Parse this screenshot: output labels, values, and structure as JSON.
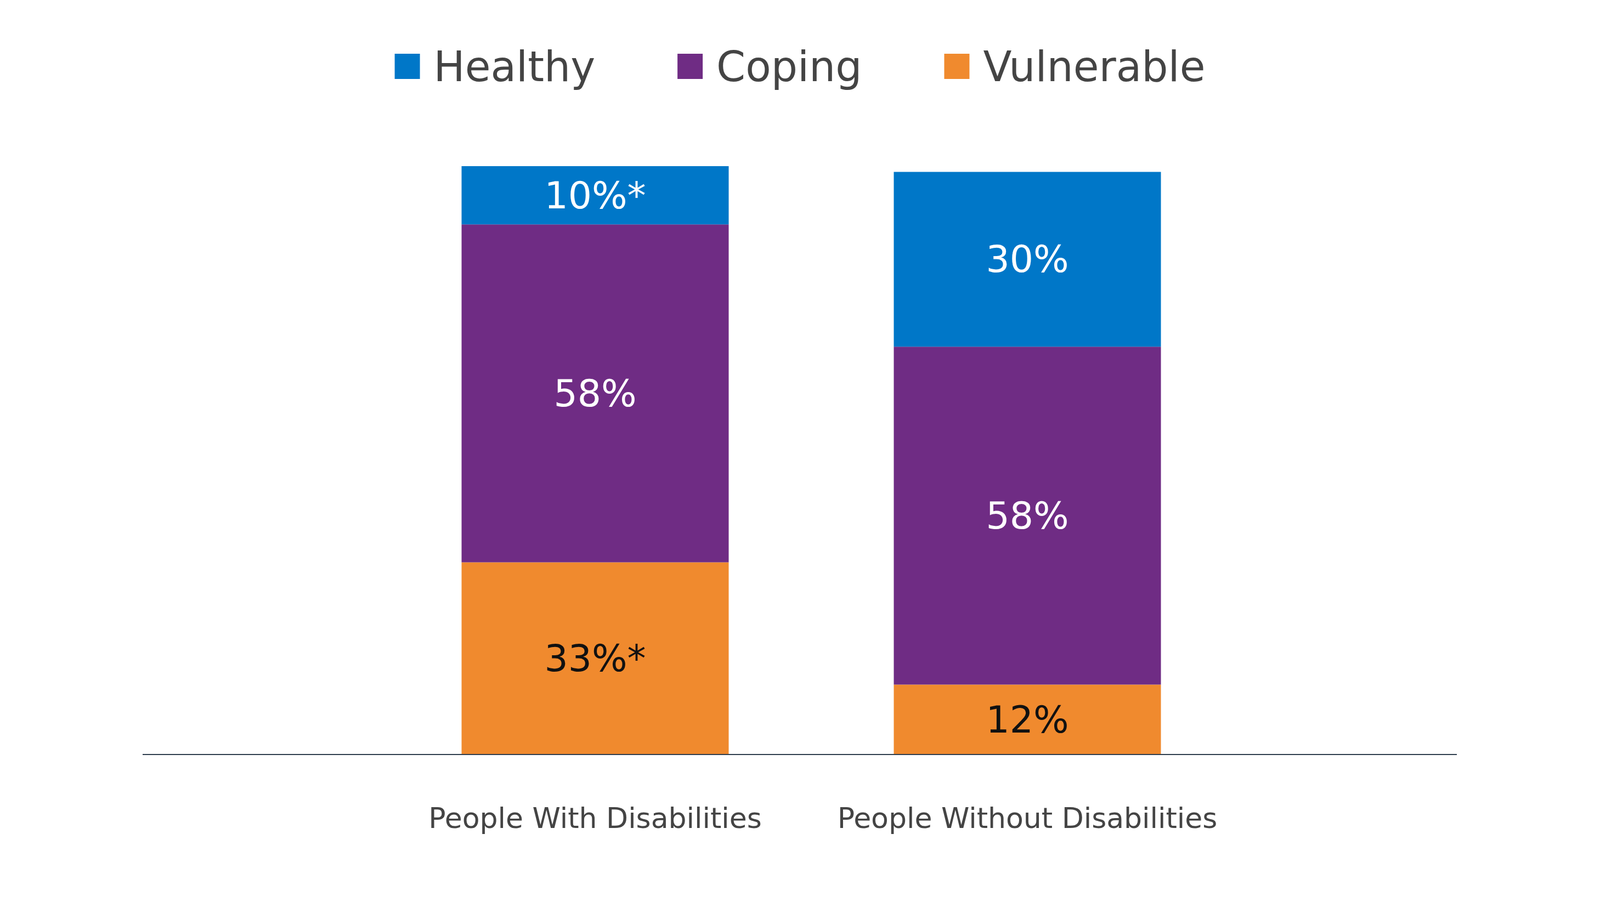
{
  "chart_data": {
    "type": "bar",
    "stacked": true,
    "data_labels": true,
    "legend": "top",
    "tick_labels": "x",
    "categories": [
      "People With Disabilities",
      "People Without Disabilities"
    ],
    "series": [
      {
        "name": "Healthy",
        "color": "#0077c8",
        "values": [
          10,
          30
        ],
        "value_labels": [
          "10%*",
          "30%"
        ]
      },
      {
        "name": "Coping",
        "color": "#6f2c84",
        "values": [
          58,
          58
        ],
        "value_labels": [
          "58%",
          "58%"
        ]
      },
      {
        "name": "Vulnerable",
        "color": "#f08a2e",
        "values": [
          33,
          12
        ],
        "value_labels": [
          "33%*",
          "12%"
        ]
      }
    ]
  }
}
